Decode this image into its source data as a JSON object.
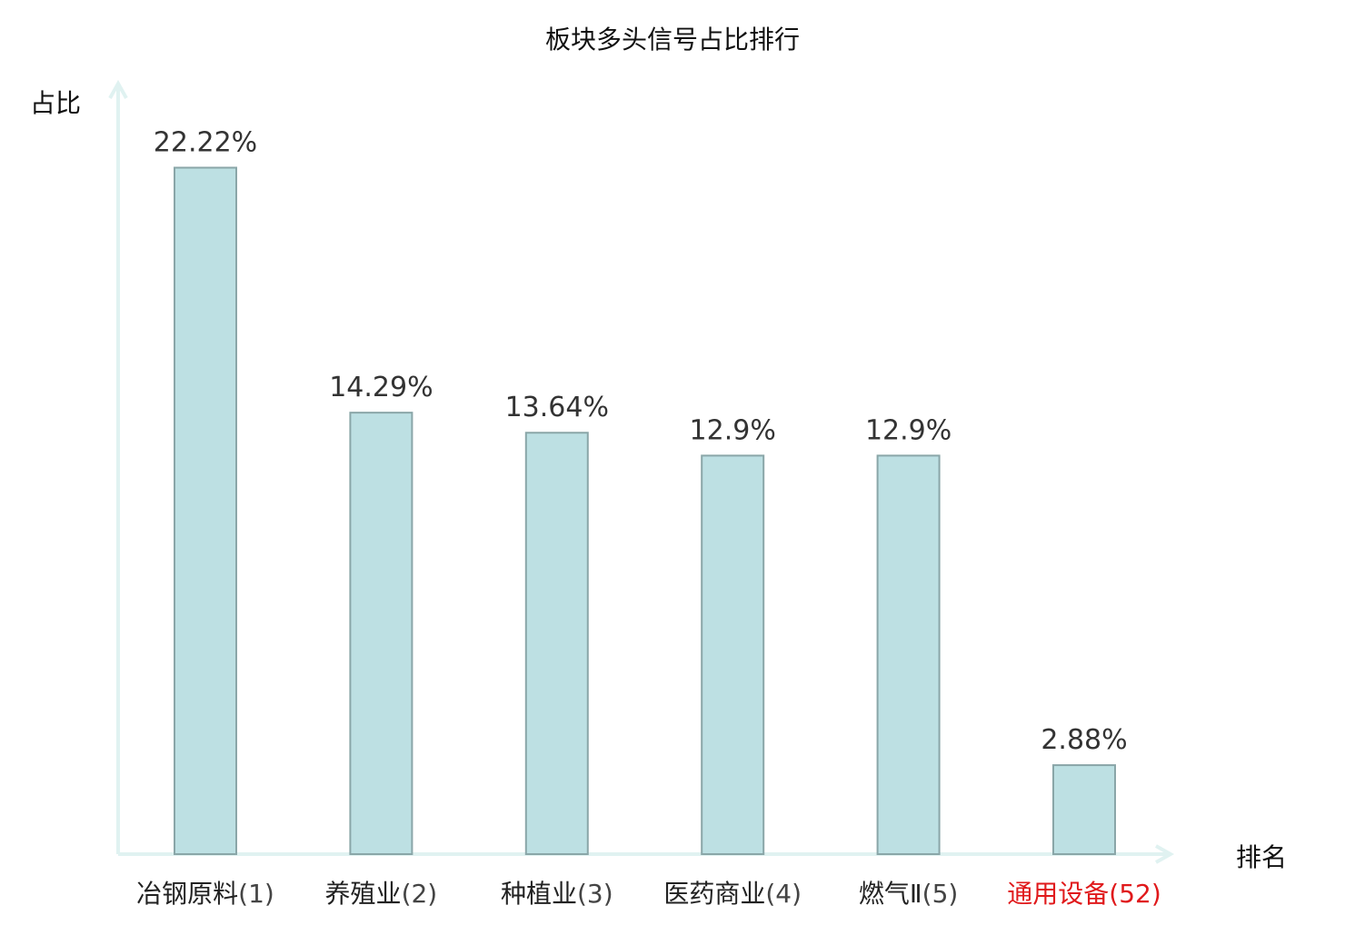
{
  "chart_data": {
    "type": "bar",
    "title": "板块多头信号占比排行",
    "ylabel": "占比",
    "xlabel": "排名",
    "categories": [
      "冶钢原料(1)",
      "养殖业(2)",
      "种植业(3)",
      "医药商业(4)",
      "燃气Ⅱ(5)",
      "通用设备(52)"
    ],
    "category_parts": [
      {
        "name": "冶钢原料",
        "rank": "(1)"
      },
      {
        "name": "养殖业",
        "rank": "(2)"
      },
      {
        "name": "种植业",
        "rank": "(3)"
      },
      {
        "name": "医药商业",
        "rank": "(4)"
      },
      {
        "name": "燃气Ⅱ",
        "rank": "(5)"
      },
      {
        "name": "通用设备",
        "rank": "(52)"
      }
    ],
    "values": [
      22.22,
      14.29,
      13.64,
      12.9,
      12.9,
      2.88
    ],
    "value_labels": [
      "22.22%",
      "14.29%",
      "13.64%",
      "12.9%",
      "12.9%",
      "2.88%"
    ],
    "highlight_index": 5,
    "ylim": [
      0,
      25
    ],
    "grid": false,
    "colors": {
      "bar_fill": "#bde0e3",
      "bar_stroke": "#8aa6a8",
      "axis": "#e0f2f1",
      "label": "#222222",
      "highlight": "#e0191b"
    }
  }
}
